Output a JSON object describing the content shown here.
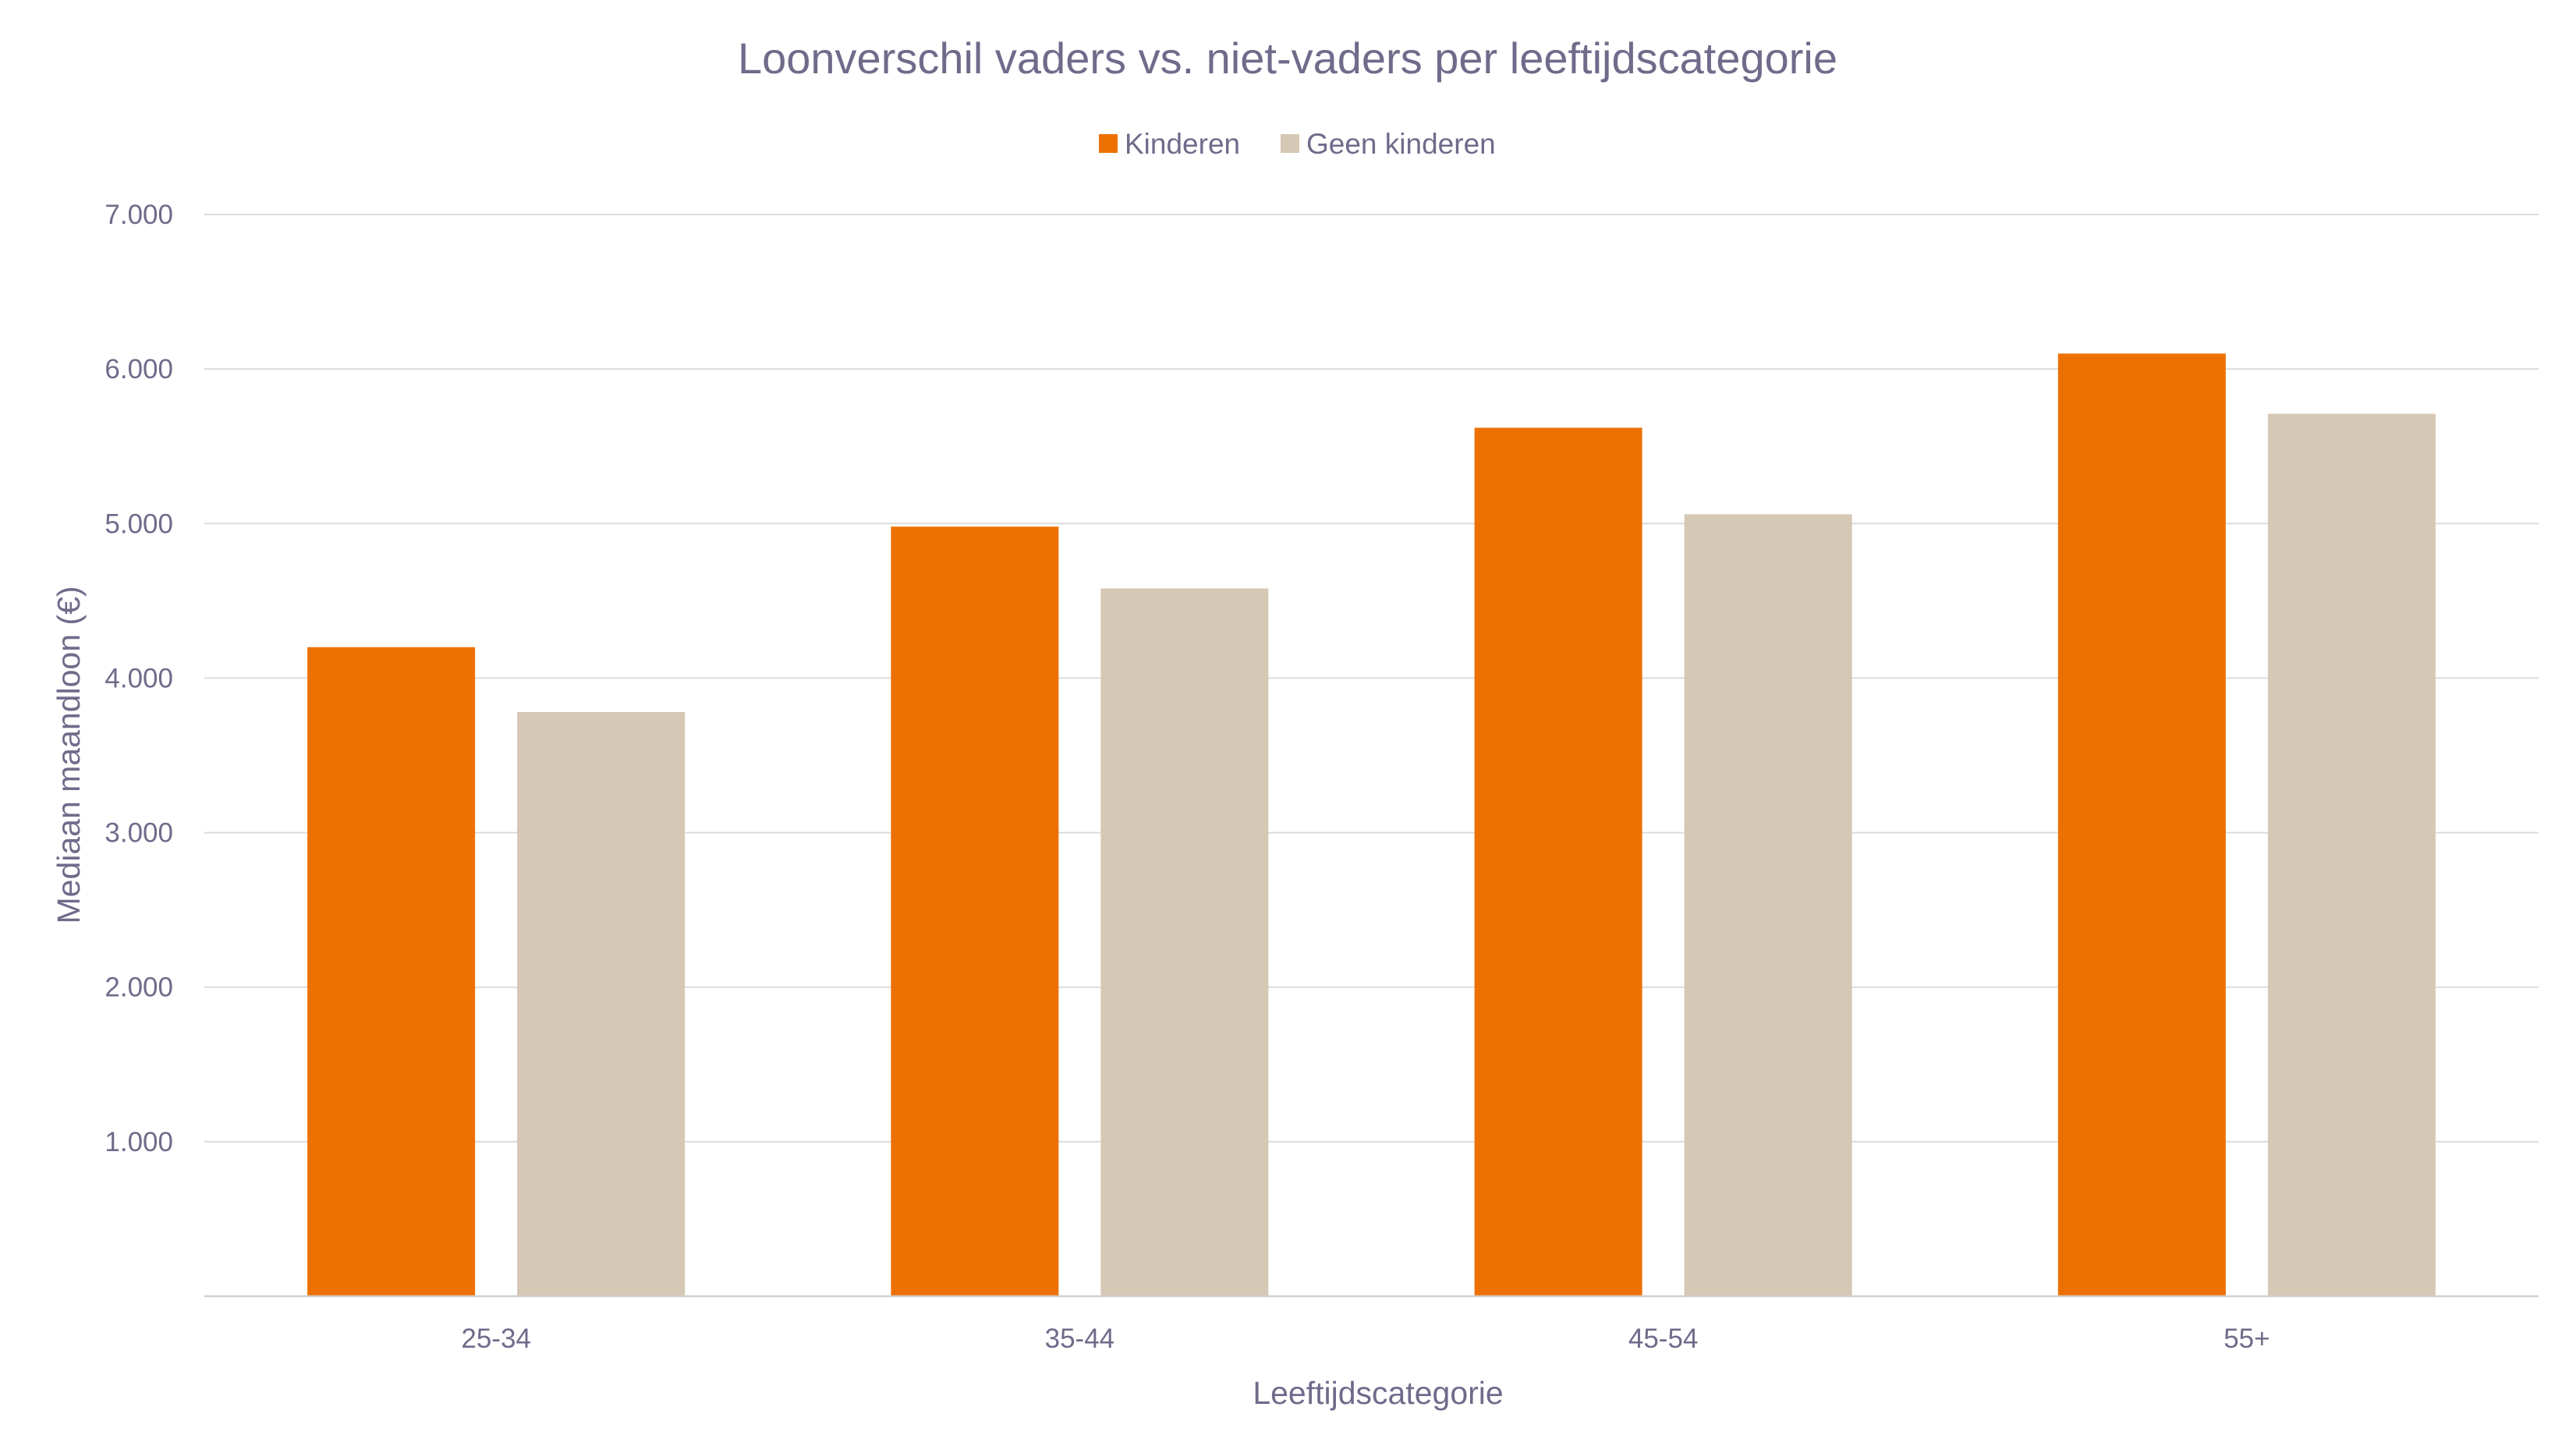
{
  "chart_data": {
    "type": "bar",
    "title": "Loonverschil vaders vs. niet-vaders per leeftijdscategorie",
    "xlabel": "Leeftijdscategorie",
    "ylabel": "Mediaan maandloon (€)",
    "categories": [
      "25-34",
      "35-44",
      "45-54",
      "55+"
    ],
    "series": [
      {
        "name": "Kinderen",
        "color": "#ed7102",
        "values": [
          4200,
          4980,
          5620,
          6100
        ]
      },
      {
        "name": "Geen kinderen",
        "color": "#d5c8b4",
        "values": [
          3780,
          4580,
          5060,
          5710
        ]
      }
    ],
    "ylim": [
      0,
      7000
    ],
    "yticks": [
      {
        "value": 1000,
        "label": "1.000"
      },
      {
        "value": 2000,
        "label": "2.000"
      },
      {
        "value": 3000,
        "label": "3.000"
      },
      {
        "value": 4000,
        "label": "4.000"
      },
      {
        "value": 5000,
        "label": "5.000"
      },
      {
        "value": 6000,
        "label": "6.000"
      },
      {
        "value": 7000,
        "label": "7.000"
      }
    ],
    "grid": true,
    "legend_position": "top-center"
  }
}
